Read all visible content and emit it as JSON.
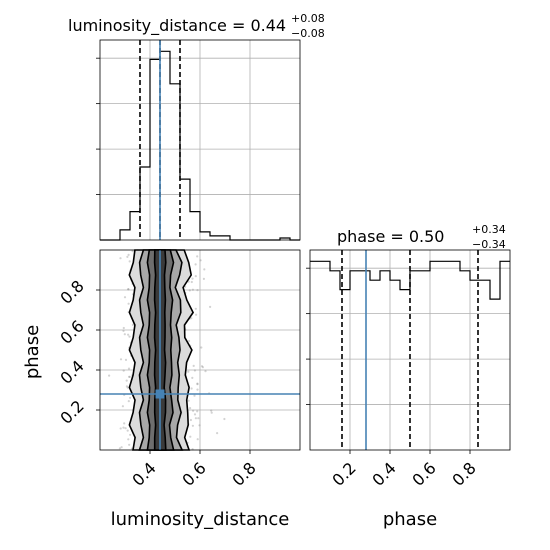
{
  "chart_data": [
    {
      "panel": "luminosity_distance-marginal",
      "type": "histogram",
      "title_main": "luminosity_distance = 0.44",
      "title_sup": "+0.08",
      "title_sub": "−0.08",
      "xlim": [
        0.2,
        1.0
      ],
      "grid": true,
      "bin_edges": [
        0.2,
        0.24,
        0.28,
        0.32,
        0.36,
        0.4,
        0.44,
        0.48,
        0.52,
        0.56,
        0.6,
        0.64,
        0.68,
        0.72,
        0.76,
        0.8,
        0.84,
        0.88,
        0.92,
        0.96,
        1.0
      ],
      "counts": [
        0,
        0,
        5,
        14,
        36,
        89,
        93,
        77,
        30,
        14,
        4,
        2,
        2,
        0,
        0,
        0,
        0,
        0,
        1,
        0
      ],
      "quantiles": [
        0.36,
        0.44,
        0.52
      ],
      "truth": 0.44,
      "colors": {
        "line": "#000000",
        "truth": "#4682b4"
      }
    },
    {
      "panel": "phase-marginal",
      "type": "histogram",
      "title_main": "phase = 0.50",
      "title_sup": "+0.34",
      "title_sub": "−0.34",
      "xlim": [
        0.0,
        1.0
      ],
      "grid": true,
      "bin_edges": [
        0.0,
        0.05,
        0.1,
        0.15,
        0.2,
        0.25,
        0.3,
        0.35,
        0.4,
        0.45,
        0.5,
        0.55,
        0.6,
        0.65,
        0.7,
        0.75,
        0.8,
        0.85,
        0.9,
        0.95,
        1.0
      ],
      "counts": [
        20,
        20,
        19,
        17,
        19,
        19,
        18,
        19,
        18,
        17,
        19,
        19,
        20,
        20,
        20,
        19,
        18,
        18,
        16,
        20
      ],
      "quantiles": [
        0.16,
        0.5,
        0.84
      ],
      "truth": 0.28,
      "colors": {
        "line": "#000000",
        "truth": "#4682b4"
      }
    },
    {
      "panel": "joint",
      "type": "scatter",
      "x_param": "luminosity_distance",
      "y_param": "phase",
      "xlabel": "luminosity_distance",
      "ylabel": "phase",
      "xlim": [
        0.2,
        1.0
      ],
      "ylim": [
        0.0,
        1.0
      ],
      "xticks": [
        "0.4",
        "0.6",
        "0.8"
      ],
      "yticks": [
        "0.2",
        "0.4",
        "0.6",
        "0.8"
      ],
      "phase_xticks": [
        "0.2",
        "0.4",
        "0.6",
        "0.8"
      ],
      "truth": [
        0.44,
        0.28
      ],
      "grid": true,
      "colors": {
        "points": "#808080",
        "contour": "#000000",
        "truth": "#4682b4"
      }
    }
  ]
}
